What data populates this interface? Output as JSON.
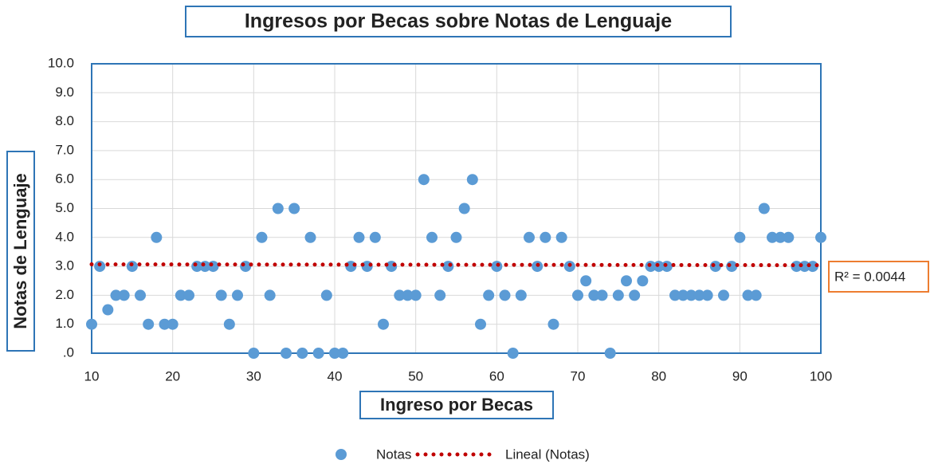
{
  "chart_data": {
    "type": "scatter",
    "title": "Ingresos por Becas sobre Notas de Lenguaje",
    "xlabel": "Ingreso por Becas",
    "ylabel": "Notas de Lenguaje",
    "series": [
      {
        "name": "Notas",
        "color": "#5b9bd5",
        "x": [
          10,
          11,
          12,
          13,
          14,
          15,
          16,
          17,
          18,
          19,
          20,
          21,
          22,
          23,
          24,
          25,
          26,
          27,
          28,
          29,
          30,
          31,
          32,
          33,
          34,
          35,
          36,
          37,
          38,
          39,
          40,
          41,
          42,
          43,
          44,
          45,
          46,
          47,
          48,
          49,
          50,
          51,
          52,
          53,
          54,
          55,
          56,
          57,
          58,
          59,
          60,
          61,
          62,
          63,
          64,
          65,
          66,
          67,
          68,
          69,
          70,
          71,
          72,
          73,
          74,
          75,
          76,
          77,
          78,
          79,
          80,
          81,
          82,
          83,
          84,
          85,
          86,
          87,
          88,
          89,
          90,
          91,
          92,
          93,
          94,
          95,
          96,
          97,
          98,
          99,
          100
        ],
        "values": [
          1,
          3,
          1.5,
          2,
          2,
          3,
          2,
          1,
          4,
          1,
          1,
          2,
          2,
          3,
          3,
          3,
          2,
          1,
          2,
          3,
          0,
          4,
          2,
          5,
          0,
          5,
          0,
          4,
          0,
          2,
          0,
          0,
          3,
          4,
          3,
          4,
          1,
          3,
          2,
          2,
          2,
          6,
          4,
          2,
          3,
          4,
          5,
          6,
          1,
          2,
          3,
          2,
          0,
          2,
          4,
          3,
          4,
          1,
          4,
          3,
          2,
          2.5,
          2,
          2,
          0,
          2,
          2.5,
          2,
          2.5,
          3,
          3,
          3,
          2,
          2,
          2,
          2,
          2,
          3,
          2,
          3,
          4,
          2,
          2,
          5,
          4,
          4,
          4,
          3,
          3,
          3,
          4
        ]
      }
    ],
    "trendline": {
      "name": "Lineal (Notas)",
      "color": "#c00000",
      "x": [
        10,
        100
      ],
      "values": [
        3.07,
        3.04
      ]
    },
    "annotation": "R² = 0.0044",
    "xlim": [
      10,
      100
    ],
    "xticks": [
      10,
      20,
      30,
      40,
      50,
      60,
      70,
      80,
      90,
      100
    ],
    "ylim": [
      0,
      10
    ],
    "yticks": [
      {
        "value": 0,
        "label": ".0"
      },
      {
        "value": 1,
        "label": "1.0"
      },
      {
        "value": 2,
        "label": "2.0"
      },
      {
        "value": 3,
        "label": "3.0"
      },
      {
        "value": 4,
        "label": "4.0"
      },
      {
        "value": 5,
        "label": "5.0"
      },
      {
        "value": 6,
        "label": "6.0"
      },
      {
        "value": 7,
        "label": "7.0"
      },
      {
        "value": 8,
        "label": "8.0"
      },
      {
        "value": 9,
        "label": "9.0"
      },
      {
        "value": 10,
        "label": "10.0"
      }
    ],
    "grid": true
  }
}
